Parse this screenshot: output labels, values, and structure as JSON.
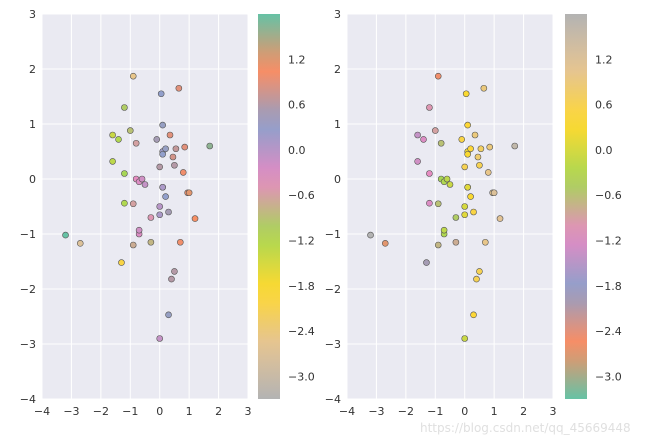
{
  "watermark": "https://blog.csdn.net/qq_45669448",
  "chart_data": [
    {
      "type": "scatter",
      "title": "",
      "xlabel": "",
      "ylabel": "",
      "xlim": [
        -4,
        3
      ],
      "ylim": [
        -4,
        3
      ],
      "xticks": [
        "−4",
        "−3",
        "−2",
        "−1",
        "0",
        "1",
        "2",
        "3"
      ],
      "yticks": [
        "−4",
        "−3",
        "−2",
        "−1",
        "0",
        "1",
        "2",
        "3"
      ],
      "grid": true,
      "colormap": "Set2 (reversed)",
      "colorbar_ticks": [
        "1.2",
        "0.6",
        "0.0",
        "−0.6",
        "−1.2",
        "−1.8",
        "−2.4",
        "−3.0"
      ],
      "clim": [
        -3.3,
        1.8
      ],
      "x": [
        -3.2,
        -2.7,
        -1.6,
        -1.6,
        -1.4,
        -1.3,
        -1.2,
        -1.2,
        -1.2,
        -1.0,
        -0.9,
        -0.9,
        -0.9,
        -0.8,
        -0.8,
        -0.7,
        -0.7,
        -0.7,
        -0.6,
        -0.5,
        -0.3,
        -0.3,
        -0.1,
        0.0,
        0.0,
        0.0,
        0.0,
        0.05,
        0.1,
        0.1,
        0.1,
        0.1,
        0.1,
        0.2,
        0.2,
        0.3,
        0.3,
        0.35,
        0.4,
        0.45,
        0.5,
        0.5,
        0.55,
        0.65,
        0.7,
        0.8,
        0.85,
        0.95,
        1.0,
        1.2,
        1.7
      ],
      "y": [
        -1.02,
        -1.17,
        0.8,
        0.32,
        0.72,
        -1.52,
        1.3,
        -0.44,
        0.1,
        0.88,
        1.87,
        -0.45,
        -1.2,
        0.65,
        0.0,
        -1.0,
        -0.93,
        -0.05,
        0.0,
        -0.1,
        -1.15,
        -0.7,
        0.72,
        -0.5,
        -0.65,
        -2.9,
        0.22,
        1.55,
        -0.15,
        0.5,
        0.45,
        0.98,
        -0.15,
        0.55,
        -0.32,
        -2.47,
        -0.6,
        0.8,
        -1.82,
        0.4,
        0.25,
        -1.68,
        0.55,
        1.65,
        -1.15,
        0.12,
        0.58,
        -0.25,
        -0.25,
        -0.72,
        0.6
      ],
      "c": [
        1.8,
        -2.7,
        -1.4,
        -1.3,
        -1.2,
        -2.0,
        -1.0,
        -1.2,
        -1.1,
        -0.9,
        -2.5,
        -0.6,
        -0.7,
        -0.6,
        -0.4,
        -0.3,
        -0.2,
        -0.3,
        -0.2,
        -0.1,
        -0.8,
        -0.5,
        0.5,
        0.0,
        0.1,
        -0.1,
        0.6,
        0.3,
        0.0,
        0.2,
        0.3,
        0.4,
        0.1,
        0.4,
        0.3,
        0.4,
        0.5,
        0.9,
        0.6,
        0.8,
        0.6,
        0.6,
        0.7,
        0.9,
        1.0,
        1.0,
        0.9,
        1.0,
        1.2,
        1.1,
        1.6
      ]
    },
    {
      "type": "scatter",
      "title": "",
      "xlabel": "",
      "ylabel": "",
      "xlim": [
        -4,
        3
      ],
      "ylim": [
        -4,
        3
      ],
      "xticks": [
        "−4",
        "−3",
        "−2",
        "−1",
        "0",
        "1",
        "2",
        "3"
      ],
      "yticks": [
        "−4",
        "−3",
        "−2",
        "−1",
        "0",
        "1",
        "2",
        "3"
      ],
      "grid": true,
      "colormap": "Set2",
      "colorbar_ticks": [
        "1.2",
        "0.6",
        "0.0",
        "−0.6",
        "−1.2",
        "−1.8",
        "−2.4",
        "−3.0"
      ],
      "clim": [
        -3.3,
        1.8
      ],
      "x": [
        -3.2,
        -2.7,
        -1.6,
        -1.6,
        -1.4,
        -1.3,
        -1.2,
        -1.2,
        -1.2,
        -1.0,
        -0.9,
        -0.9,
        -0.9,
        -0.8,
        -0.8,
        -0.7,
        -0.7,
        -0.7,
        -0.6,
        -0.5,
        -0.3,
        -0.3,
        -0.1,
        0.0,
        0.0,
        0.0,
        0.0,
        0.05,
        0.1,
        0.1,
        0.1,
        0.1,
        0.1,
        0.2,
        0.2,
        0.3,
        0.3,
        0.35,
        0.4,
        0.45,
        0.5,
        0.5,
        0.55,
        0.65,
        0.7,
        0.8,
        0.85,
        0.95,
        1.0,
        1.2,
        1.7
      ],
      "y": [
        -1.02,
        -1.17,
        0.8,
        0.32,
        0.72,
        -1.52,
        1.3,
        -0.44,
        0.1,
        0.88,
        1.87,
        -0.45,
        -1.2,
        0.65,
        0.0,
        -1.0,
        -0.93,
        -0.05,
        0.0,
        -0.1,
        -1.15,
        -0.7,
        0.72,
        -0.5,
        -0.65,
        -2.9,
        0.22,
        1.55,
        -0.15,
        0.5,
        0.45,
        0.98,
        -0.15,
        0.55,
        -0.32,
        -2.47,
        -0.6,
        0.8,
        -1.82,
        0.4,
        0.25,
        -1.68,
        0.55,
        1.65,
        -1.15,
        0.12,
        0.58,
        -0.25,
        -0.25,
        -0.72,
        0.6
      ],
      "c": [
        1.8,
        -2.7,
        -1.4,
        -1.3,
        -1.2,
        -2.0,
        -1.0,
        -1.2,
        -1.1,
        -0.9,
        -2.5,
        -0.6,
        -0.7,
        -0.6,
        -0.4,
        -0.3,
        -0.2,
        -0.3,
        -0.2,
        -0.1,
        -0.8,
        -0.5,
        0.5,
        0.0,
        0.1,
        -0.1,
        0.6,
        0.3,
        0.0,
        0.2,
        0.3,
        0.4,
        0.1,
        0.4,
        0.3,
        0.4,
        0.5,
        0.9,
        0.6,
        0.8,
        0.6,
        0.6,
        0.7,
        0.9,
        1.0,
        1.0,
        0.9,
        1.0,
        1.2,
        1.1,
        1.6
      ]
    }
  ],
  "colors": {
    "plot_background": "#eaeaf2",
    "grid": "#ffffff",
    "marker_edge": "#555555",
    "set2_stops": [
      "#66c2a5",
      "#fc8d62",
      "#8da0cb",
      "#e78ac3",
      "#a6d854",
      "#ffd92f",
      "#e5c494",
      "#b3b3b3"
    ]
  }
}
